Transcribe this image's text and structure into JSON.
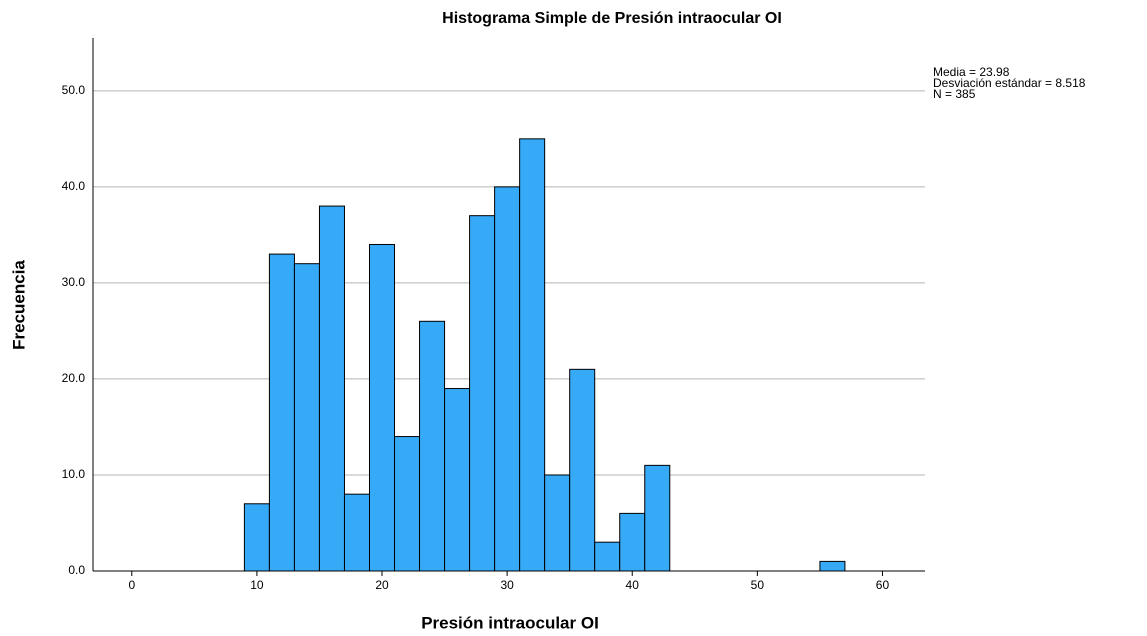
{
  "chart_data": {
    "type": "histogram",
    "title": "Histograma Simple de Presión intraocular OI",
    "xlabel": "Presión intraocular OI",
    "ylabel": "Frecuencia",
    "stats": [
      "Media = 23.98",
      "Desviación estándar = 8.518",
      "N = 385"
    ],
    "bins": [
      9,
      11,
      13,
      15,
      17,
      19,
      21,
      23,
      25,
      27,
      29,
      31,
      33,
      35,
      37,
      39,
      41,
      43,
      45,
      47,
      49,
      51,
      53,
      55,
      57
    ],
    "values": [
      7,
      33,
      32,
      38,
      8,
      34,
      14,
      26,
      19,
      37,
      40,
      45,
      10,
      21,
      3,
      6,
      11,
      0,
      0,
      0,
      0,
      0,
      0,
      1
    ],
    "color": "#36a9f7",
    "xlim": [
      -3.1,
      63.4
    ],
    "xticks": [
      0,
      10,
      20,
      30,
      40,
      50,
      60
    ],
    "ylim": [
      0,
      55.5
    ],
    "yticks": [
      {
        "value": 0,
        "label": "0.0"
      },
      {
        "value": 10,
        "label": "10.0"
      },
      {
        "value": 20,
        "label": "20.0"
      },
      {
        "value": 30,
        "label": "30.0"
      },
      {
        "value": 40,
        "label": "40.0"
      },
      {
        "value": 50,
        "label": "50.0"
      }
    ],
    "grid": true
  }
}
